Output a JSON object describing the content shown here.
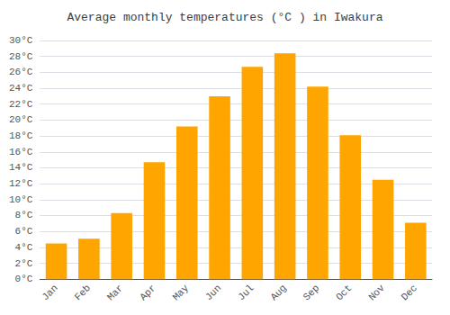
{
  "chart_data": {
    "type": "bar",
    "title": "Average monthly temperatures (°C ) in Iwakura",
    "categories": [
      "Jan",
      "Feb",
      "Mar",
      "Apr",
      "May",
      "Jun",
      "Jul",
      "Aug",
      "Sep",
      "Oct",
      "Nov",
      "Dec"
    ],
    "values": [
      4.5,
      5.1,
      8.3,
      14.7,
      19.2,
      23.0,
      26.7,
      28.4,
      24.2,
      18.1,
      12.5,
      7.1
    ],
    "color": "#FFA500",
    "ylim": [
      0,
      30
    ],
    "yticks": [
      {
        "value": 0,
        "label": "0°C"
      },
      {
        "value": 2,
        "label": "2°C"
      },
      {
        "value": 4,
        "label": "4°C"
      },
      {
        "value": 6,
        "label": "6°C"
      },
      {
        "value": 8,
        "label": "8°C"
      },
      {
        "value": 10,
        "label": "10°C"
      },
      {
        "value": 12,
        "label": "12°C"
      },
      {
        "value": 14,
        "label": "14°C"
      },
      {
        "value": 16,
        "label": "16°C"
      },
      {
        "value": 18,
        "label": "18°C"
      },
      {
        "value": 20,
        "label": "20°C"
      },
      {
        "value": 22,
        "label": "22°C"
      },
      {
        "value": 24,
        "label": "24°C"
      },
      {
        "value": 26,
        "label": "26°C"
      },
      {
        "value": 28,
        "label": "28°C"
      },
      {
        "value": 30,
        "label": "30°C"
      }
    ],
    "grid": true
  }
}
